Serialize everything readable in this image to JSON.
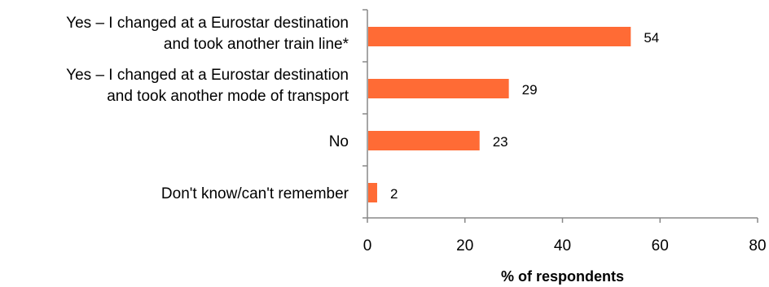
{
  "chart_data": {
    "type": "bar",
    "orientation": "horizontal",
    "title": "",
    "xlabel": "% of respondents",
    "ylabel": "",
    "xlim": [
      0,
      80
    ],
    "xticks": [
      "0",
      "20",
      "40",
      "60",
      "80"
    ],
    "grid": false,
    "categories": [
      [
        "Yes – I changed at a Eurostar destination",
        "and took another train line*"
      ],
      [
        "Yes – I changed at a Eurostar destination",
        "and took another mode of transport"
      ],
      [
        "No"
      ],
      [
        "Don't know/can't remember"
      ]
    ],
    "values": [
      54,
      29,
      23,
      2
    ],
    "data_labels": [
      "54",
      "29",
      "23",
      "2"
    ],
    "bar_color": "#FF6B35",
    "axis_color": "#888888"
  }
}
